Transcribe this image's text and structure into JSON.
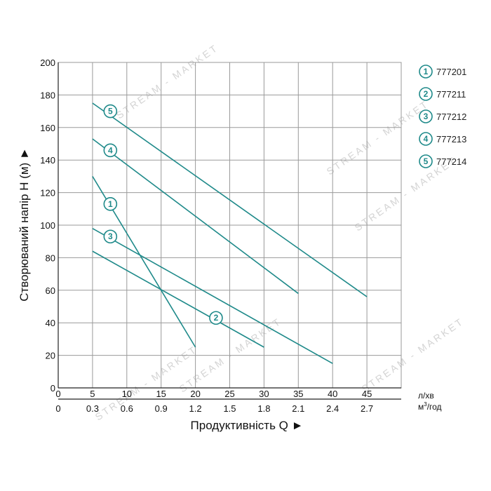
{
  "chart_data": {
    "type": "line",
    "xlabel": "Продуктивність Q ►",
    "ylabel": "Створюваний напір Н (м) ►",
    "x_unit": "л/хв",
    "x2_unit": "м³/год",
    "x2_unit_base": "м",
    "x2_unit_sup": "3",
    "x2_unit_tail": "/год",
    "x_ticks": [
      "0",
      "5",
      "10",
      "15",
      "20",
      "25",
      "30",
      "35",
      "40",
      "45"
    ],
    "x2_ticks": [
      "0",
      "0.3",
      "0.6",
      "0.9",
      "1.2",
      "1.5",
      "1.8",
      "2.1",
      "2.4",
      "2.7"
    ],
    "y_ticks": [
      "0",
      "20",
      "40",
      "60",
      "80",
      "100",
      "120",
      "140",
      "160",
      "180",
      "200"
    ],
    "xlim": [
      0,
      50
    ],
    "ylim": [
      0,
      200
    ],
    "grid": true,
    "legend_position": "top-right",
    "series": [
      {
        "id": "1",
        "name": "777201",
        "x": [
          5,
          20
        ],
        "y": [
          130,
          25
        ]
      },
      {
        "id": "2",
        "name": "777211",
        "x": [
          5,
          30
        ],
        "y": [
          84,
          25
        ]
      },
      {
        "id": "3",
        "name": "777212",
        "x": [
          5,
          40
        ],
        "y": [
          98,
          15
        ]
      },
      {
        "id": "4",
        "name": "777213",
        "x": [
          5,
          35
        ],
        "y": [
          153,
          58
        ]
      },
      {
        "id": "5",
        "name": "777214",
        "x": [
          5,
          45
        ],
        "y": [
          175,
          56
        ]
      }
    ],
    "markers": [
      {
        "label": "1",
        "x": 7.6,
        "y": 113
      },
      {
        "label": "2",
        "x": 23,
        "y": 43
      },
      {
        "label": "3",
        "x": 7.6,
        "y": 93
      },
      {
        "label": "4",
        "x": 7.6,
        "y": 146
      },
      {
        "label": "5",
        "x": 7.6,
        "y": 170
      }
    ],
    "line_color": "#1f8a8a"
  },
  "watermark": "STREAM - MARKET"
}
